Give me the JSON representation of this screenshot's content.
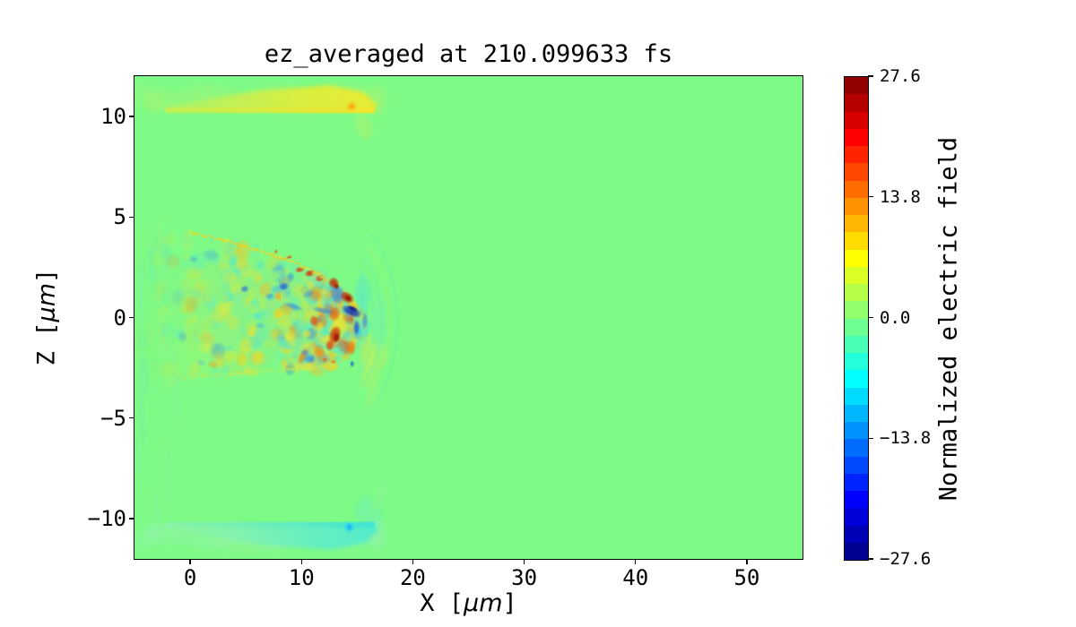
{
  "figure": {
    "background": "#ffffff",
    "text_color": "#000000"
  },
  "chart_data": {
    "type": "heatmap",
    "title": "ez_averaged at 210.099633 fs",
    "xlabel": {
      "pre": "X [",
      "unit": "μm",
      "post": "]"
    },
    "ylabel": {
      "pre": "Z [",
      "unit": "μm",
      "post": "]"
    },
    "xlim": [
      -5,
      55
    ],
    "zlim": [
      -12,
      12
    ],
    "grid": false,
    "xticks": {
      "values": [
        0,
        10,
        20,
        30,
        40,
        50
      ],
      "labels": [
        "0",
        "10",
        "20",
        "30",
        "40",
        "50"
      ]
    },
    "yticks": {
      "values": [
        10,
        5,
        0,
        -5,
        -10
      ],
      "labels": [
        "10",
        "5",
        "0",
        "−5",
        "−10"
      ]
    },
    "colorbar": {
      "label": "Normalized electric field",
      "vmin": -27.6,
      "vmax": 27.6,
      "levels": 28,
      "colormap": "jet",
      "ticks": {
        "values": [
          27.6,
          13.8,
          0.0,
          -13.8,
          -27.6
        ],
        "labels": [
          "27.6",
          "13.8",
          "0.0",
          "−13.8",
          "−27.6"
        ]
      }
    },
    "field": {
      "background_value": 0.0,
      "zero_color": "#7efb86",
      "seed": 101,
      "description": "2D ez field: near-zero (green) everywhere except a positive (yellow) slab at z≈+10–11.7 μm and a negative (cyan) slab at z≈−10–−11.7 μm, both spanning x≈−4.5–17.5 μm, plus a turbulent laser-wake wedge (x≈−5–15.8 μm, z≈−3–4.2 μm) with strong ± speckles and a hot red/blue front arc at x≈13–15 μm; faint halo ahead of the front fades out by x≈19 μm.",
      "top_slab": {
        "x_range": [
          -4.6,
          17.6
        ],
        "z_range": [
          10.0,
          11.9
        ],
        "peak": {
          "x": 14.5,
          "z": 10.5
        },
        "halo_color": "#a9f473",
        "core_colors": [
          "#c6ef55",
          "#e7ec36",
          "#edea2e"
        ],
        "edge_strip_colors": [
          "#e0ec3b",
          "#f4e42c"
        ],
        "peak_colors": [
          "#fbc31d",
          "#fb9d15"
        ]
      },
      "bottom_slab": {
        "x_range": [
          -4.6,
          17.6
        ],
        "z_range": [
          -11.9,
          -10.0
        ],
        "peak": {
          "x": 14.3,
          "z": -10.42
        },
        "halo_color": "#96f3b0",
        "core_colors": [
          "#9df3a8",
          "#66eec4",
          "#4feace"
        ],
        "edge_strip_colors": [
          "#8af1b4",
          "#3ee6d6"
        ],
        "peak_colors": [
          "#2bd4f0",
          "#18aef2"
        ]
      },
      "wake": {
        "x_range": [
          -5,
          15.8
        ],
        "halo_x_max": 19,
        "top_boundary": {
          "x": [
            -5,
            0,
            3,
            6,
            9,
            11,
            12.5,
            14,
            15,
            15.7
          ],
          "z": [
            3.85,
            4.22,
            3.85,
            3.35,
            2.8,
            2.3,
            1.8,
            1.05,
            0.3,
            -0.35
          ]
        },
        "bottom_boundary": {
          "x": [
            -5,
            -2,
            0,
            4,
            8,
            11,
            13,
            14.5,
            15.7
          ],
          "z": [
            -4.2,
            -3.3,
            -2.95,
            -2.8,
            -2.62,
            -2.5,
            -2.38,
            -1.7,
            -0.45
          ]
        },
        "washes": [
          [
            6.5,
            0.4,
            8.5,
            3.1,
            -3,
            "#8ff280",
            0.5
          ],
          [
            7.5,
            0.3,
            7.2,
            2.8,
            -3,
            "#6aeab2",
            0.3
          ],
          [
            10.5,
            0.0,
            4.5,
            2.6,
            0,
            "#5fe6c0",
            0.25
          ],
          [
            3.0,
            1.2,
            5.5,
            2.2,
            -8,
            "#a6f26f",
            0.3
          ],
          [
            2.0,
            -1.5,
            5.0,
            1.8,
            -5,
            "#b9ef62",
            0.25
          ]
        ],
        "front_halo": [
          [
            15.4,
            0.1,
            0.8,
            2.4,
            0,
            "#4fe6cf",
            0.55
          ],
          [
            15.6,
            1.3,
            1.0,
            1.0,
            0,
            "#62e9c5",
            0.45
          ],
          [
            15.6,
            -0.6,
            0.5,
            0.8,
            0,
            "#35d8ea",
            0.5
          ],
          [
            15.9,
            -1.6,
            0.9,
            1.1,
            0,
            "#cdee50",
            0.6
          ],
          [
            16.1,
            -2.8,
            1.0,
            0.9,
            15,
            "#bdf065",
            0.5
          ],
          [
            16.4,
            -3.9,
            0.7,
            0.8,
            15,
            "#a8f175",
            0.4
          ],
          [
            17.0,
            -0.3,
            0.9,
            1.8,
            0,
            "#72eebb",
            0.35
          ],
          [
            16.9,
            -1.9,
            1.1,
            0.8,
            10,
            "#d4ec55",
            0.35
          ]
        ],
        "ripple_center": [
          13.4,
          -0.2
        ],
        "ripple_radii": [
          3.1,
          3.8,
          4.5,
          5.2
        ],
        "red_blobs": [
          [
            9.85,
            2.38,
            0.45,
            0.16,
            -14,
            "#e03d10",
            0.9
          ],
          [
            10.75,
            2.2,
            0.5,
            0.18,
            -14,
            "#d2330c",
            0.92
          ],
          [
            11.65,
            1.95,
            0.45,
            0.18,
            -18,
            "#e03d10",
            0.88
          ],
          [
            12.9,
            1.72,
            0.5,
            0.3,
            -28,
            "#c42a08",
            0.95
          ],
          [
            13.15,
            1.55,
            0.25,
            0.15,
            -28,
            "#9c1804",
            0.9
          ],
          [
            14.1,
            1.0,
            0.5,
            0.4,
            -55,
            "#c02606",
            0.95
          ],
          [
            14.2,
            0.95,
            0.26,
            0.2,
            -55,
            "#8f1403",
            0.9
          ],
          [
            13.0,
            -0.85,
            0.55,
            0.48,
            18,
            "#cc2d08",
            0.95
          ],
          [
            13.15,
            -1.0,
            0.3,
            0.25,
            18,
            "#961503",
            0.9
          ],
          [
            12.55,
            -1.38,
            0.42,
            0.3,
            8,
            "#e24511",
            0.9
          ],
          [
            11.1,
            -0.15,
            0.4,
            0.28,
            0,
            "#e8560f",
            0.85
          ],
          [
            14.5,
            -1.5,
            0.38,
            0.42,
            0,
            "#ee7a14",
            0.9
          ],
          [
            7.7,
            3.28,
            0.18,
            0.1,
            -14,
            "#e8560f",
            0.85
          ],
          [
            8.9,
            3.0,
            0.3,
            0.09,
            -16,
            "#df4a10",
            0.85
          ],
          [
            12.1,
            -2.1,
            0.28,
            0.12,
            4,
            "#e86412",
            0.8
          ],
          [
            12.85,
            -2.2,
            0.26,
            0.12,
            4,
            "#ee7a14",
            0.8
          ]
        ],
        "blue_blobs": [
          [
            14.5,
            0.3,
            0.45,
            0.55,
            -65,
            "#0a2ec2",
            0.92
          ],
          [
            14.6,
            0.45,
            0.22,
            0.3,
            -65,
            "#041a92",
            0.9
          ],
          [
            14.95,
            -0.5,
            0.3,
            0.4,
            0,
            "#1550de",
            0.8
          ],
          [
            15.7,
            -0.15,
            0.28,
            0.45,
            0,
            "#2c85ea",
            0.7
          ],
          [
            4.9,
            1.42,
            0.4,
            0.18,
            -8,
            "#2066e6",
            0.7
          ],
          [
            8.4,
            1.55,
            0.45,
            0.2,
            -10,
            "#1a5ce2",
            0.8
          ],
          [
            9.3,
            0.55,
            0.3,
            0.5,
            -70,
            "#2c7de8",
            0.6
          ],
          [
            14.55,
            -2.3,
            0.2,
            0.17,
            0,
            "#1550de",
            0.78
          ],
          [
            10.3,
            -1.75,
            0.38,
            0.18,
            8,
            "#2c7de8",
            0.55
          ],
          [
            11.9,
            0.35,
            0.28,
            0.55,
            -78,
            "#2c7de8",
            0.6
          ],
          [
            6.3,
            -0.4,
            0.45,
            0.16,
            0,
            "#3ba0e8",
            0.45
          ]
        ],
        "yellow_blobs": [
          [
            7.9,
            0.2,
            0.5,
            0.3,
            0,
            "#f2d41e",
            0.8
          ],
          [
            6.0,
            -2.0,
            0.8,
            0.42,
            8,
            "#ecdc2a",
            0.8
          ],
          [
            7.9,
            1.05,
            0.34,
            0.24,
            0,
            "#f4a81c",
            0.8
          ],
          [
            10.4,
            -2.45,
            1.1,
            0.25,
            3,
            "#e8e438",
            0.8
          ],
          [
            12.6,
            -2.42,
            0.85,
            0.22,
            3,
            "#ecdc2a",
            0.85
          ],
          [
            3.0,
            0.5,
            0.8,
            0.34,
            -10,
            "#dcec3c",
            0.6
          ],
          [
            1.5,
            -1.5,
            0.9,
            0.3,
            -8,
            "#d8ec48",
            0.55
          ],
          [
            9.0,
            -0.9,
            0.6,
            0.3,
            10,
            "#e0ea3a",
            0.6
          ],
          [
            5.2,
            2.2,
            0.7,
            0.25,
            -12,
            "#d4ee44",
            0.55
          ]
        ],
        "speckle_palette": [
          [
            "#a8ef63",
            3
          ],
          [
            "#cfee3e",
            2.4
          ],
          [
            "#e9e336",
            1.5
          ],
          [
            "#66edbb",
            3
          ],
          [
            "#49e3d9",
            1.3
          ],
          [
            "#8bf17e",
            2.2
          ],
          [
            "#f0c22a",
            0.7
          ],
          [
            "#4ab4ec",
            0.6
          ],
          [
            "#2d7ce9",
            0.45
          ],
          [
            "#ee7d15",
            0.35
          ]
        ],
        "front_palette": [
          [
            "#e9e336",
            2
          ],
          [
            "#f0c22a",
            1.2
          ],
          [
            "#49e3d9",
            1.6
          ],
          [
            "#2d7ce9",
            1
          ],
          [
            "#ee7a14",
            0.8
          ],
          [
            "#66edbb",
            1.4
          ],
          [
            "#e24511",
            0.5
          ]
        ],
        "edge_dot_palette_top": [
          "#e4ea33",
          "#f3c61e",
          "#9cef72",
          "#e8d52a"
        ],
        "edge_dot_palette_bottom": [
          "#d9ec44",
          "#c6ef52",
          "#9ff07a"
        ],
        "trail_streak_colors": [
          "#7ff0a4",
          "#93f57f",
          "#6fedaf"
        ]
      }
    }
  }
}
